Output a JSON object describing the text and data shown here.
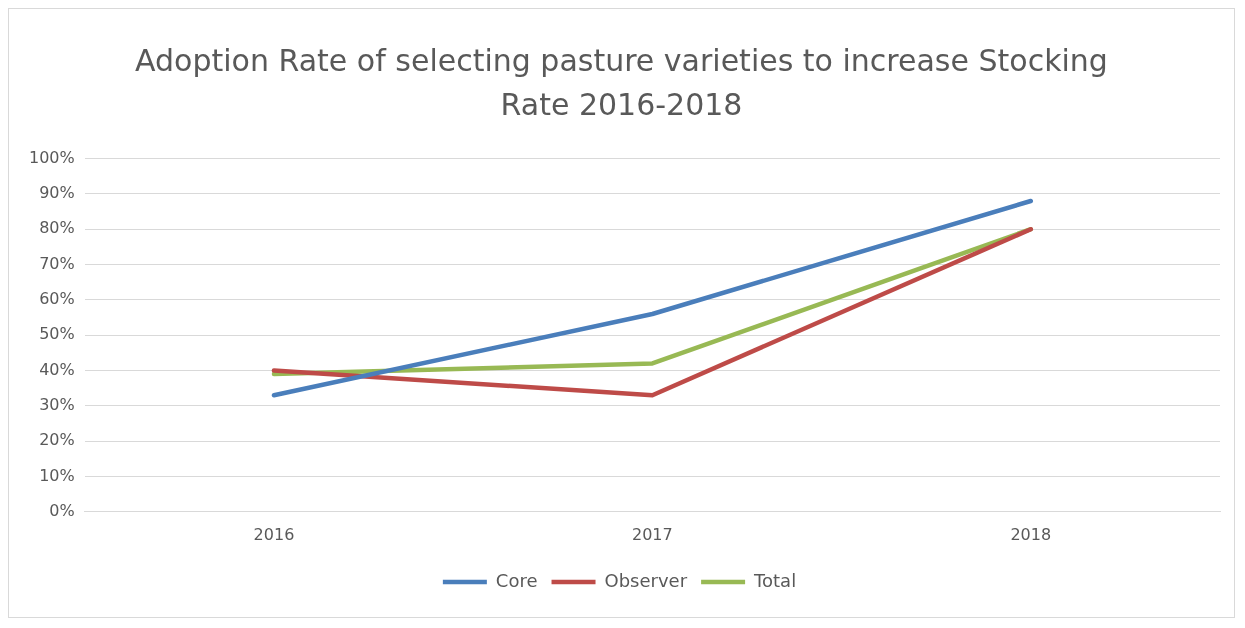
{
  "chart_data": {
    "type": "line",
    "title": "Adoption Rate of selecting pasture varieties to increase Stocking Rate 2016-2018",
    "categories": [
      "2016",
      "2017",
      "2018"
    ],
    "series": [
      {
        "name": "Core",
        "color": "#4a7ebb",
        "values": [
          33,
          56,
          88
        ]
      },
      {
        "name": "Observer",
        "color": "#be4b48",
        "values": [
          40,
          33,
          80
        ]
      },
      {
        "name": "Total",
        "color": "#98b954",
        "values": [
          39,
          42,
          80
        ]
      }
    ],
    "ylim": [
      0,
      100
    ],
    "yticks": [
      {
        "value": 0,
        "label": "0%"
      },
      {
        "value": 10,
        "label": "10%"
      },
      {
        "value": 20,
        "label": "20%"
      },
      {
        "value": 30,
        "label": "30%"
      },
      {
        "value": 40,
        "label": "40%"
      },
      {
        "value": 50,
        "label": "50%"
      },
      {
        "value": 60,
        "label": "60%"
      },
      {
        "value": 70,
        "label": "70%"
      },
      {
        "value": 80,
        "label": "80%"
      },
      {
        "value": 90,
        "label": "90%"
      },
      {
        "value": 100,
        "label": "100%"
      }
    ],
    "grid": "y",
    "legend": "bottom",
    "marker": "none",
    "line_style": "solid"
  }
}
